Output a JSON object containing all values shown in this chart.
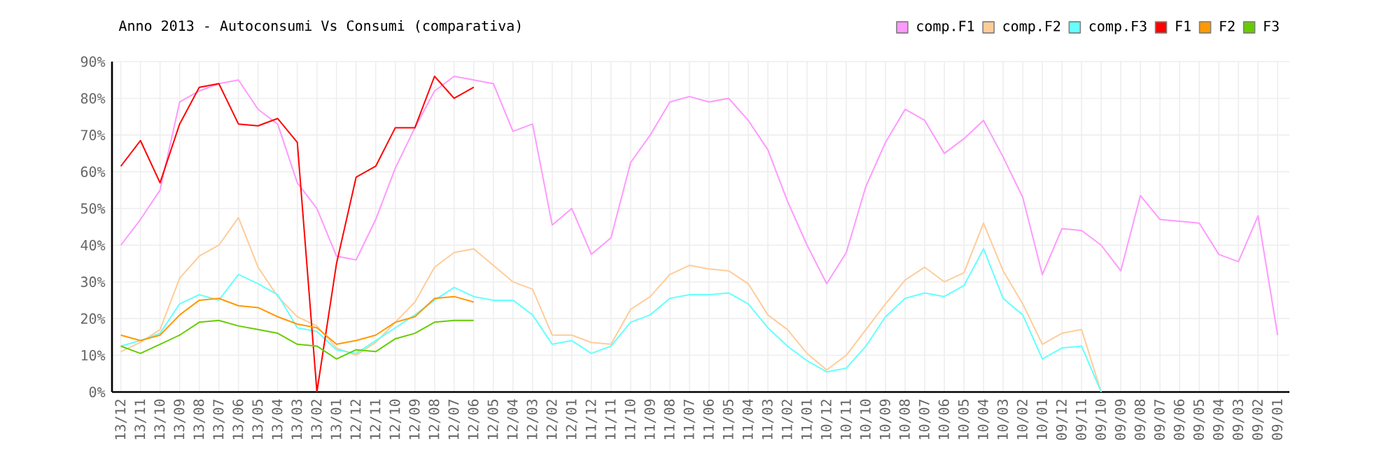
{
  "chart_data": {
    "type": "line",
    "title": "Anno 2013 - Autoconsumi Vs Consumi (comparativa)",
    "categories": [
      "13/12",
      "13/11",
      "13/10",
      "13/09",
      "13/08",
      "13/07",
      "13/06",
      "13/05",
      "13/04",
      "13/03",
      "13/02",
      "13/01",
      "12/12",
      "12/11",
      "12/10",
      "12/09",
      "12/08",
      "12/07",
      "12/06",
      "12/05",
      "12/04",
      "12/03",
      "12/02",
      "12/01",
      "11/12",
      "11/11",
      "11/10",
      "11/09",
      "11/08",
      "11/07",
      "11/06",
      "11/05",
      "11/04",
      "11/03",
      "11/02",
      "11/01",
      "10/12",
      "10/11",
      "10/10",
      "10/09",
      "10/08",
      "10/07",
      "10/06",
      "10/05",
      "10/04",
      "10/03",
      "10/02",
      "10/01",
      "09/12",
      "09/11",
      "09/10",
      "09/09",
      "09/08",
      "09/07",
      "09/06",
      "09/05",
      "09/04",
      "09/03",
      "09/02",
      "09/01"
    ],
    "series": [
      {
        "name": "comp.F1",
        "color": "#ff99ff",
        "values": [
          40,
          47,
          55,
          79,
          82,
          84,
          85,
          77,
          73,
          57,
          50,
          37,
          36,
          47,
          61,
          72,
          82,
          86,
          85,
          84,
          71,
          73,
          45.5,
          50,
          37.5,
          42,
          62.5,
          70,
          79,
          80.5,
          79,
          80,
          74,
          66,
          52,
          40,
          29.5,
          38,
          56,
          68,
          77,
          74,
          65,
          69,
          74,
          64,
          53,
          32,
          44.5,
          44,
          40,
          33,
          53.5,
          47,
          46.5,
          46,
          37.5,
          35.5,
          48,
          15.5
        ]
      },
      {
        "name": "comp.F2",
        "color": "#ffcc99",
        "values": [
          11,
          13.5,
          17,
          31,
          37,
          40,
          47.5,
          34,
          26,
          20.5,
          18,
          12,
          10,
          13.5,
          19,
          24.5,
          34,
          38,
          39,
          34.5,
          30,
          28,
          15.5,
          15.5,
          13.5,
          13,
          22.5,
          26,
          32,
          34.5,
          33.5,
          33,
          29.5,
          21,
          17,
          10.5,
          6,
          10,
          17,
          24,
          30.5,
          34,
          30,
          32.5,
          46,
          33,
          24,
          13,
          16,
          17,
          0,
          null,
          null,
          null,
          null,
          null,
          null,
          null,
          null,
          null
        ]
      },
      {
        "name": "comp.F3",
        "color": "#66ffff",
        "values": [
          12.5,
          14,
          16,
          24,
          26.5,
          25,
          32,
          29.5,
          26.5,
          17.5,
          16.5,
          11.5,
          10.5,
          14,
          17.5,
          21,
          25,
          28.5,
          26,
          25,
          25,
          21,
          13,
          14,
          10.5,
          12.5,
          19,
          21,
          25.5,
          26.5,
          26.5,
          27,
          24,
          17.5,
          12.5,
          8.5,
          5.5,
          6.5,
          12.5,
          20.5,
          25.5,
          27,
          26,
          29,
          39,
          25.5,
          21,
          9,
          12,
          12.5,
          0,
          null,
          null,
          null,
          null,
          null,
          null,
          null,
          null,
          null
        ]
      },
      {
        "name": "F1",
        "color": "#ff0000",
        "values": [
          61.5,
          68.5,
          57,
          73,
          83,
          84,
          73,
          72.5,
          74.5,
          68,
          0,
          35,
          58.5,
          61.5,
          72,
          72,
          86,
          80,
          83,
          null,
          null,
          null,
          null,
          null,
          null,
          null,
          null,
          null,
          null,
          null,
          null,
          null,
          null,
          null,
          null,
          null,
          null,
          null,
          null,
          null,
          null,
          null,
          null,
          null,
          null,
          null,
          null,
          null,
          null,
          null,
          null,
          null,
          null,
          null,
          null,
          null,
          null,
          null,
          null,
          null
        ]
      },
      {
        "name": "F2",
        "color": "#ff9900",
        "values": [
          15.5,
          14,
          15.5,
          21,
          25,
          25.5,
          23.5,
          23,
          20.5,
          18.5,
          17.5,
          13,
          14,
          15.5,
          19,
          20.5,
          25.5,
          26,
          24.5,
          null,
          null,
          null,
          null,
          null,
          null,
          null,
          null,
          null,
          null,
          null,
          null,
          null,
          null,
          null,
          null,
          null,
          null,
          null,
          null,
          null,
          null,
          null,
          null,
          null,
          null,
          null,
          null,
          null,
          null,
          null,
          null,
          null,
          null,
          null,
          null,
          null,
          null,
          null,
          null,
          null
        ]
      },
      {
        "name": "F3",
        "color": "#66cc00",
        "values": [
          12.5,
          10.5,
          13,
          15.5,
          19,
          19.5,
          18,
          17,
          16,
          13,
          12.5,
          9,
          11.5,
          11,
          14.5,
          16,
          19,
          19.5,
          19.5,
          null,
          null,
          null,
          null,
          null,
          null,
          null,
          null,
          null,
          null,
          null,
          null,
          null,
          null,
          null,
          null,
          null,
          null,
          null,
          null,
          null,
          null,
          null,
          null,
          null,
          null,
          null,
          null,
          null,
          null,
          null,
          null,
          null,
          null,
          null,
          null,
          null,
          null,
          null,
          null,
          null
        ]
      }
    ],
    "ylim": [
      0,
      90
    ],
    "yticks": [
      {
        "value": 0,
        "label": "0%"
      },
      {
        "value": 10,
        "label": "10%"
      },
      {
        "value": 20,
        "label": "20%"
      },
      {
        "value": 30,
        "label": "30%"
      },
      {
        "value": 40,
        "label": "40%"
      },
      {
        "value": 50,
        "label": "50%"
      },
      {
        "value": 60,
        "label": "60%"
      },
      {
        "value": 70,
        "label": "70%"
      },
      {
        "value": 80,
        "label": "80%"
      },
      {
        "value": 90,
        "label": "90%"
      }
    ],
    "grid": true,
    "legend": "top right"
  }
}
